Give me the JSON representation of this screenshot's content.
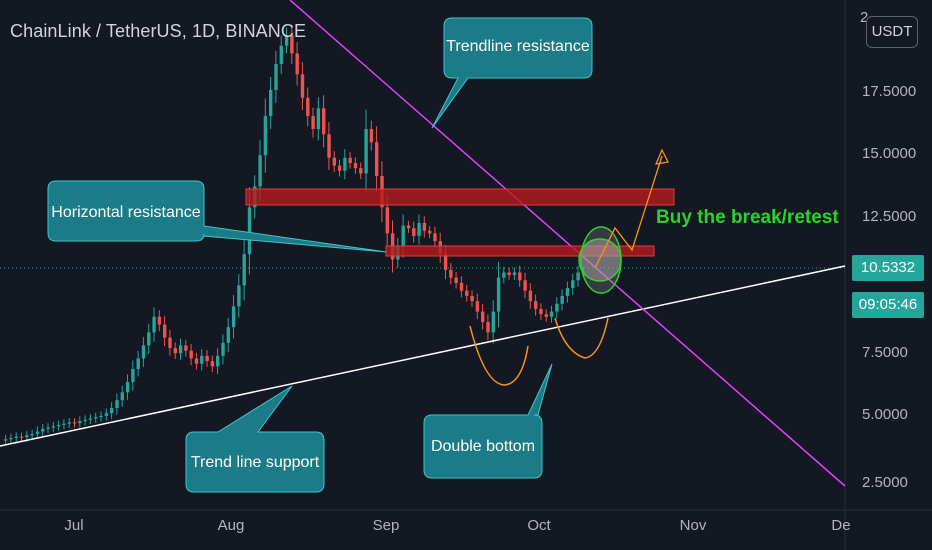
{
  "window": {
    "title": "ChainLink / TetherUS, 1D, BINANCE",
    "currency_button": "USDT"
  },
  "price_axis": {
    "ticks": [
      "2",
      "17.5000",
      "15.0000",
      "12.5000",
      "7.5000",
      "5.0000",
      "2.5000"
    ],
    "current_price": "10.5332",
    "countdown": "09:05:46"
  },
  "time_axis": {
    "ticks": [
      "Jul",
      "Aug",
      "Sep",
      "Oct",
      "Nov",
      "De"
    ]
  },
  "annotations": {
    "trendline_resistance": "Trendline resistance",
    "horizontal_resistance": "Horizontal resistance",
    "trend_line_support": "Trend line support",
    "double_bottom": "Double bottom",
    "buy_text": "Buy the break/retest"
  },
  "colors": {
    "background": "#141823",
    "up_candle": "#26a69a",
    "down_candle": "#ef5350",
    "callout_fill": "#1b7b86",
    "resistance_line": "#e040fb",
    "resistance_zone": "#b71c1c",
    "buy_text": "#28d428",
    "projection": "#f7931a"
  },
  "chart_data": {
    "type": "candlestick",
    "title": "ChainLink / TetherUS, 1D, BINANCE",
    "x_ticks": [
      "Jul",
      "Aug",
      "Sep",
      "Oct",
      "Nov",
      "De"
    ],
    "y_ticks": [
      2.5,
      5,
      7.5,
      10.5332,
      12.5,
      15,
      17.5
    ],
    "y_range": [
      1.8,
      20.5
    ],
    "last_price": 10.5332,
    "candles_close": [
      4.1,
      4.15,
      4.2,
      4.18,
      4.25,
      4.3,
      4.4,
      4.5,
      4.55,
      4.6,
      4.65,
      4.7,
      4.75,
      4.72,
      4.8,
      4.85,
      4.9,
      4.95,
      5.0,
      5.1,
      5.3,
      5.6,
      5.9,
      6.3,
      6.8,
      7.2,
      7.7,
      8.2,
      8.8,
      8.5,
      8.0,
      7.6,
      7.4,
      7.7,
      7.5,
      7.2,
      7.0,
      7.3,
      7.1,
      6.9,
      7.3,
      7.8,
      8.4,
      9.2,
      10.0,
      11.2,
      13.0,
      13.8,
      15.0,
      16.5,
      17.5,
      18.5,
      19.2,
      19.6,
      18.9,
      18.1,
      17.2,
      16.5,
      16.0,
      16.8,
      15.8,
      14.9,
      14.6,
      14.4,
      14.9,
      14.7,
      14.5,
      14.3,
      16.0,
      15.5,
      14.2,
      13.0,
      12.0,
      11.0,
      11.5,
      12.3,
      12.2,
      11.9,
      12.4,
      12.1,
      12.0,
      11.7,
      11.2,
      10.6,
      10.3,
      10.1,
      9.8,
      9.6,
      9.4,
      9.0,
      8.6,
      8.2,
      9.0,
      10.3,
      10.5,
      10.4,
      10.5,
      10.2,
      9.8,
      9.4,
      9.1,
      8.9,
      8.8,
      9.0,
      9.3,
      9.6,
      9.9,
      10.2,
      10.5,
      10.53
    ],
    "resistance_zones": [
      [
        13.0,
        13.6
      ],
      [
        10.8,
        11.2
      ]
    ],
    "notes": "Ascending white support line, descending magenta resistance line, projected break and retest path in orange"
  }
}
